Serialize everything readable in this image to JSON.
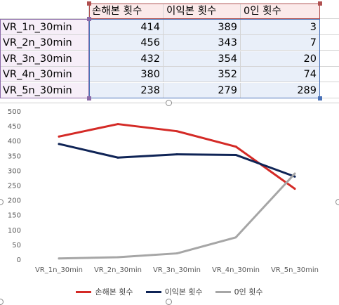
{
  "sheet": {
    "header": [
      "",
      "손해본 횟수",
      "이익본 횟수",
      "0인 횟수"
    ],
    "rows": [
      {
        "label": "VR_1n_30min",
        "v1": "414",
        "v2": "389",
        "v3": "3"
      },
      {
        "label": "VR_2n_30min",
        "v1": "456",
        "v2": "343",
        "v3": "7"
      },
      {
        "label": "VR_3n_30min",
        "v1": "432",
        "v2": "354",
        "v3": "20"
      },
      {
        "label": "VR_4n_30min",
        "v1": "380",
        "v2": "352",
        "v3": "74"
      },
      {
        "label": "VR_5n_30min",
        "v1": "238",
        "v2": "279",
        "v3": "289"
      }
    ],
    "colors": {
      "header_range": "#b05050",
      "category_range": "#8b6aa8",
      "value_range": "#4a72b8"
    }
  },
  "chart_data": {
    "type": "line",
    "categories": [
      "VR_1n_30min",
      "VR_2n_30min",
      "VR_3n_30min",
      "VR_4n_30min",
      "VR_5n_30min"
    ],
    "series": [
      {
        "name": "손해본 횟수",
        "values": [
          414,
          456,
          432,
          380,
          238
        ],
        "color": "#d42a26"
      },
      {
        "name": "이익본 횟수",
        "values": [
          389,
          343,
          354,
          352,
          279
        ],
        "color": "#0f2456"
      },
      {
        "name": "0인 횟수",
        "values": [
          3,
          7,
          20,
          74,
          289
        ],
        "color": "#a6a6a6"
      }
    ],
    "yticks": [
      "0",
      "50",
      "100",
      "150",
      "200",
      "250",
      "300",
      "350",
      "400",
      "450",
      "500"
    ],
    "ylim": [
      0,
      500
    ],
    "grid": false,
    "legend": "bottom"
  }
}
